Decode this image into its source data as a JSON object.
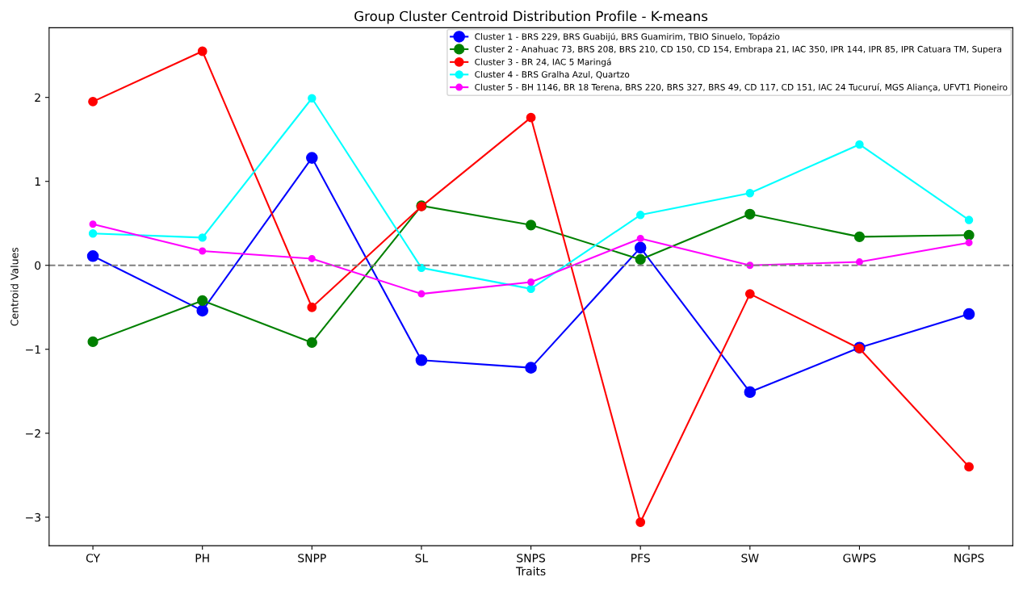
{
  "chart_data": {
    "type": "line",
    "title": "Group Cluster Centroid Distribution Profile - K-means",
    "xlabel": "Traits",
    "ylabel": "Centroid Values",
    "categories": [
      "CY",
      "PH",
      "SNPP",
      "SL",
      "SNPS",
      "PFS",
      "SW",
      "GWPS",
      "NGPS"
    ],
    "series": [
      {
        "name": "Cluster 1 - BRS 229, BRS Guabijú, BRS Guamirim, TBIO Sinuelo, Topázio",
        "color": "#0000ff",
        "values": [
          0.11,
          -0.54,
          1.28,
          -1.13,
          -1.22,
          0.21,
          -1.51,
          -0.98,
          -0.58
        ]
      },
      {
        "name": "Cluster 2 - Anahuac 73, BRS 208, BRS 210, CD 150, CD 154, Embrapa 21, IAC 350, IPR 144, IPR 85, IPR Catuara TM, Supera",
        "color": "#008000",
        "values": [
          -0.91,
          -0.42,
          -0.92,
          0.71,
          0.48,
          0.07,
          0.61,
          0.34,
          0.36
        ]
      },
      {
        "name": "Cluster 3 - BR 24, IAC 5 Maringá",
        "color": "#ff0000",
        "values": [
          1.95,
          2.55,
          -0.5,
          0.7,
          1.76,
          -3.06,
          -0.34,
          -0.99,
          -2.4
        ]
      },
      {
        "name": "Cluster 4 - BRS Gralha Azul, Quartzo",
        "color": "#00ffff",
        "values": [
          0.38,
          0.33,
          1.99,
          -0.03,
          -0.28,
          0.6,
          0.86,
          1.44,
          0.54
        ]
      },
      {
        "name": "Cluster 5 - BH 1146, BR 18 Terena, BRS 220, BRS 327, BRS 49, CD 117, CD 151, IAC 24 Tucuruí, MGS Aliança, UFVT1 Pioneiro",
        "color": "#ff00ff",
        "values": [
          0.49,
          0.17,
          0.08,
          -0.34,
          -0.2,
          0.32,
          0.0,
          0.04,
          0.27
        ]
      }
    ],
    "ylim": [
      -3.34,
      2.83
    ],
    "yticks": [
      {
        "value": -3,
        "label": "−3"
      },
      {
        "value": -2,
        "label": "−2"
      },
      {
        "value": -1,
        "label": "−1"
      },
      0,
      1,
      2
    ],
    "ref_lines": [
      {
        "axis": "y",
        "value": 0,
        "color": "#808080",
        "line_style": "dashed"
      }
    ],
    "marker": "circle",
    "line_style": "solid",
    "legend": "top right",
    "grid": false
  }
}
